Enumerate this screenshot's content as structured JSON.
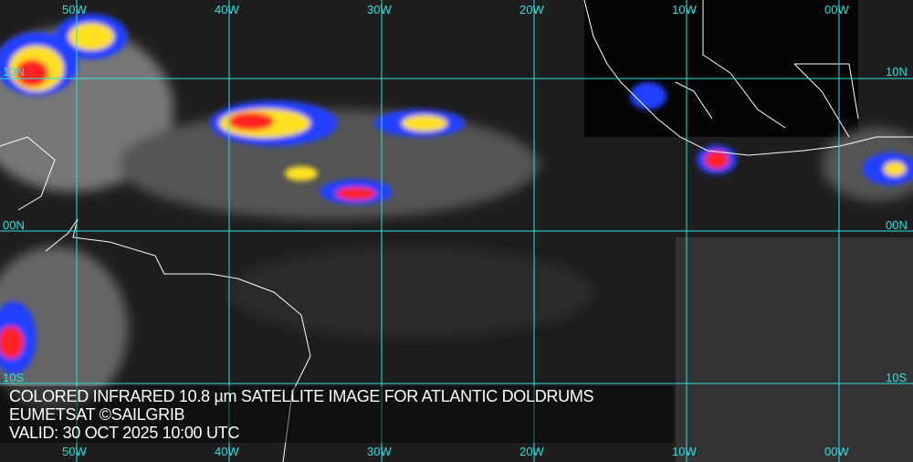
{
  "caption": {
    "title": "COLORED INFRARED 10.8 µm SATELLITE IMAGE FOR ATLANTIC DOLDRUMS",
    "credit": "EUMETSAT ©SAILGRIB",
    "valid": "VALID:  30 OCT 2025 10:00 UTC"
  },
  "longitudes": [
    "50W",
    "40W",
    "30W",
    "20W",
    "10W",
    "00W"
  ],
  "latitudes": [
    "10N",
    "00N",
    "10S"
  ],
  "colors": {
    "grid": "#2fe0e0",
    "coast": "#ffffff",
    "cloud_cold": "#ff2020",
    "cloud_mid": "#ffe020",
    "cloud_low": "#2040ff"
  }
}
